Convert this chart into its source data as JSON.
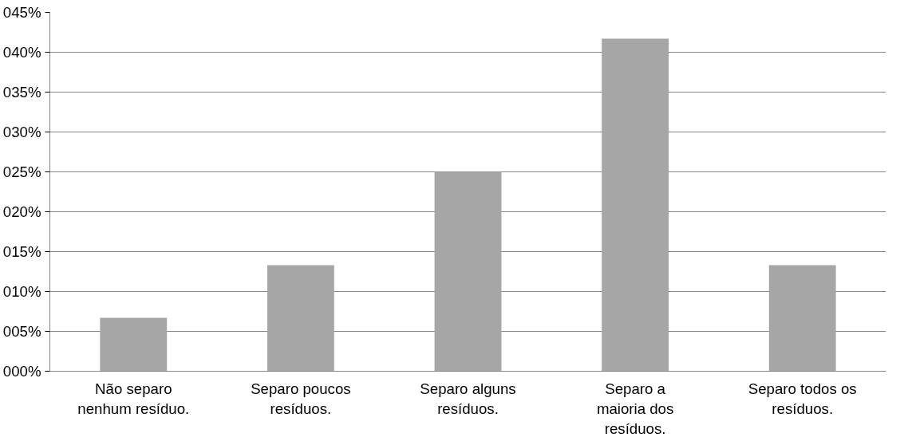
{
  "chart_data": {
    "type": "bar",
    "categories": [
      "Não separo nenhum resíduo.",
      "Separo poucos resíduos.",
      "Separo alguns resíduos.",
      "Separo a maioria dos resíduos.",
      "Separo todos os resíduos."
    ],
    "values": [
      6.7,
      13.3,
      25.0,
      41.7,
      13.3
    ],
    "color": "#a6a6a6",
    "ylim": [
      0,
      45
    ],
    "yticks": [
      {
        "value": 0,
        "label": "000%"
      },
      {
        "value": 5,
        "label": "005%"
      },
      {
        "value": 10,
        "label": "010%"
      },
      {
        "value": 15,
        "label": "015%"
      },
      {
        "value": 20,
        "label": "020%"
      },
      {
        "value": 25,
        "label": "025%"
      },
      {
        "value": 30,
        "label": "030%"
      },
      {
        "value": 35,
        "label": "035%"
      },
      {
        "value": 40,
        "label": "040%"
      },
      {
        "value": 45,
        "label": "045%"
      }
    ],
    "grid": "y"
  }
}
